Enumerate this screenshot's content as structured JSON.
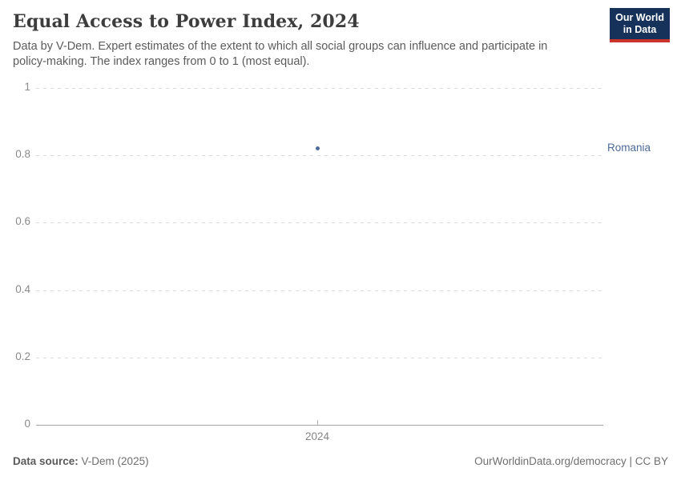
{
  "header": {
    "title": "Equal Access to Power Index, 2024",
    "subtitle": "Data by V-Dem. Expert estimates of the extent to which all social groups can influence and participate in policy-making. The index ranges from 0 to 1 (most equal).",
    "logo": {
      "line1": "Our World",
      "line2": "in Data",
      "bg_color": "#16325b",
      "stripe_color": "#c9342a"
    }
  },
  "chart_data": {
    "type": "scatter",
    "title": "Equal Access to Power Index, 2024",
    "xlabel": "",
    "ylabel": "",
    "x_ticks": [
      "2024"
    ],
    "y_ticks": [
      "1",
      "0.8",
      "0.6",
      "0.4",
      "0.2",
      "0"
    ],
    "ylim": [
      0,
      1
    ],
    "grid": "horizontal-dashed",
    "series": [
      {
        "name": "Romania",
        "x": [
          2024
        ],
        "values": [
          0.82
        ],
        "color": "#4c6a9c"
      }
    ]
  },
  "footer": {
    "source_label": "Data source:",
    "source_value": "V-Dem (2025)",
    "attribution": "OurWorldinData.org/democracy | CC BY"
  }
}
